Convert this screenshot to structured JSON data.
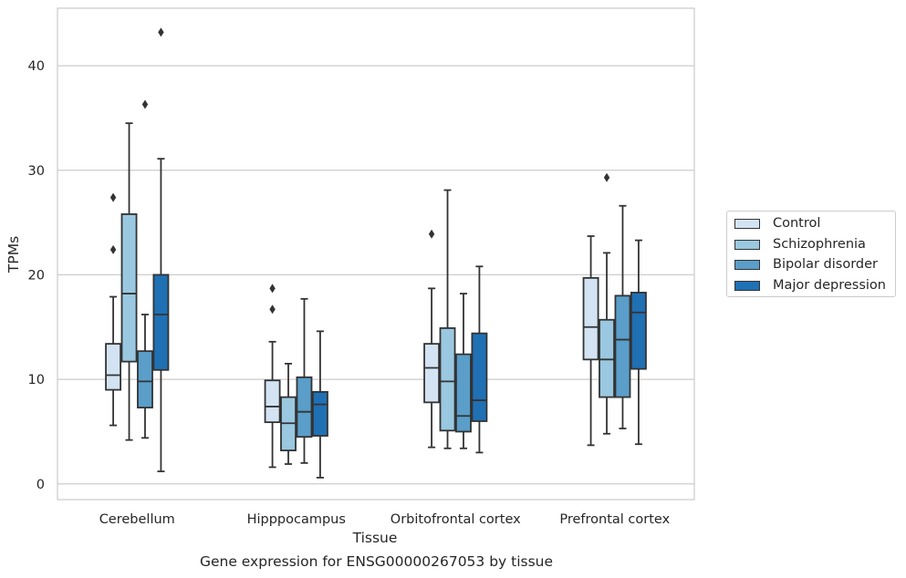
{
  "caption": "Gene expression for ENSG00000267053 by tissue",
  "chart_data": {
    "type": "box",
    "xlabel": "Tissue",
    "ylabel": "TPMs",
    "ylim": [
      -1.5,
      45.5
    ],
    "yticks": [
      0,
      10,
      20,
      30,
      40
    ],
    "grid": true,
    "legend_position": "right",
    "categories": [
      "Cerebellum",
      "Hipppocampus",
      "Orbitofrontal cortex",
      "Prefrontal cortex"
    ],
    "series": [
      {
        "name": "Control",
        "color": "#d3e3f3",
        "boxes": [
          {
            "whisker_low": 5.6,
            "q1": 9.0,
            "median": 10.4,
            "q3": 13.4,
            "whisker_high": 17.9,
            "outliers": [
              22.4,
              27.4
            ]
          },
          {
            "whisker_low": 1.6,
            "q1": 5.9,
            "median": 7.4,
            "q3": 9.9,
            "whisker_high": 13.6,
            "outliers": [
              16.7,
              18.7
            ]
          },
          {
            "whisker_low": 3.5,
            "q1": 7.8,
            "median": 11.1,
            "q3": 13.4,
            "whisker_high": 18.7,
            "outliers": [
              23.9
            ]
          },
          {
            "whisker_low": 3.7,
            "q1": 11.9,
            "median": 15.0,
            "q3": 19.7,
            "whisker_high": 23.7,
            "outliers": []
          }
        ]
      },
      {
        "name": "Schizophrenia",
        "color": "#9ac8e0",
        "boxes": [
          {
            "whisker_low": 4.2,
            "q1": 11.7,
            "median": 18.2,
            "q3": 25.8,
            "whisker_high": 34.5,
            "outliers": []
          },
          {
            "whisker_low": 1.9,
            "q1": 3.2,
            "median": 5.8,
            "q3": 8.3,
            "whisker_high": 11.5,
            "outliers": []
          },
          {
            "whisker_low": 3.4,
            "q1": 5.1,
            "median": 9.8,
            "q3": 14.9,
            "whisker_high": 28.1,
            "outliers": []
          },
          {
            "whisker_low": 4.8,
            "q1": 8.3,
            "median": 11.9,
            "q3": 15.7,
            "whisker_high": 22.1,
            "outliers": [
              29.3
            ]
          }
        ]
      },
      {
        "name": "Bipolar disorder",
        "color": "#5a9ec9",
        "boxes": [
          {
            "whisker_low": 4.4,
            "q1": 7.3,
            "median": 9.8,
            "q3": 12.7,
            "whisker_high": 16.2,
            "outliers": [
              36.3
            ]
          },
          {
            "whisker_low": 2.0,
            "q1": 4.5,
            "median": 6.9,
            "q3": 10.2,
            "whisker_high": 17.7,
            "outliers": []
          },
          {
            "whisker_low": 3.4,
            "q1": 5.0,
            "median": 6.5,
            "q3": 12.4,
            "whisker_high": 18.2,
            "outliers": []
          },
          {
            "whisker_low": 5.3,
            "q1": 8.3,
            "median": 13.8,
            "q3": 18.0,
            "whisker_high": 26.6,
            "outliers": []
          }
        ]
      },
      {
        "name": "Major depression",
        "color": "#2070b4",
        "boxes": [
          {
            "whisker_low": 1.2,
            "q1": 10.9,
            "median": 16.2,
            "q3": 20.0,
            "whisker_high": 31.1,
            "outliers": [
              43.2
            ]
          },
          {
            "whisker_low": 0.6,
            "q1": 4.6,
            "median": 7.6,
            "q3": 8.8,
            "whisker_high": 14.6,
            "outliers": []
          },
          {
            "whisker_low": 3.0,
            "q1": 6.0,
            "median": 8.0,
            "q3": 14.4,
            "whisker_high": 20.8,
            "outliers": []
          },
          {
            "whisker_low": 3.8,
            "q1": 11.0,
            "median": 16.4,
            "q3": 18.3,
            "whisker_high": 23.3,
            "outliers": []
          }
        ]
      }
    ]
  }
}
